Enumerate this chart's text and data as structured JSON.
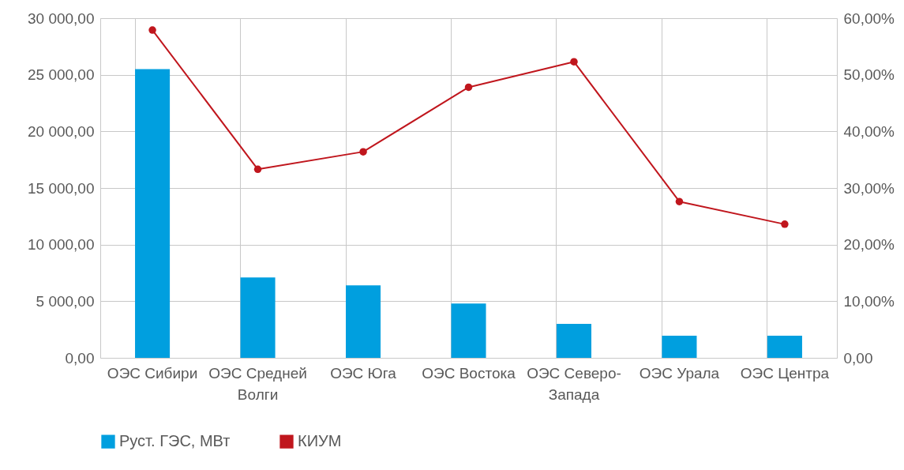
{
  "chart_data": {
    "type": "bar",
    "categories": [
      "ОЭС Сибири",
      "ОЭС Средней Волги",
      "ОЭС Юга",
      "ОЭС Востока",
      "ОЭС Северо-Запада",
      "ОЭС Урала",
      "ОЭС Центра"
    ],
    "series": [
      {
        "name": "Руст. ГЭС, МВт",
        "color": "#009fdf",
        "values": [
          25500,
          7100,
          6400,
          4800,
          3000,
          1950,
          1950
        ]
      },
      {
        "name": "КИУМ",
        "type": "line",
        "axis": "y2",
        "color": "#c0161d",
        "marker": "circle",
        "line_style": "solid",
        "values": [
          57.9,
          33.3,
          36.4,
          47.8,
          52.3,
          27.6,
          23.6
        ]
      }
    ],
    "ylim": [
      0,
      30000
    ],
    "yticks": [
      {
        "value": 0,
        "label": "0,00"
      },
      {
        "value": 5000,
        "label": "5 000,00"
      },
      {
        "value": 10000,
        "label": "10 000,00"
      },
      {
        "value": 15000,
        "label": "15 000,00"
      },
      {
        "value": 20000,
        "label": "20 000,00"
      },
      {
        "value": 25000,
        "label": "25 000,00"
      },
      {
        "value": 30000,
        "label": "30 000,00"
      }
    ],
    "y2lim": [
      0,
      60
    ],
    "y2ticks": [
      {
        "value": 0,
        "label": "0,00"
      },
      {
        "value": 10,
        "label": "10,00%"
      },
      {
        "value": 20,
        "label": "20,00%"
      },
      {
        "value": 30,
        "label": "30,00%"
      },
      {
        "value": 40,
        "label": "40,00%"
      },
      {
        "value": 50,
        "label": "50,00%"
      },
      {
        "value": 60,
        "label": "60,00%"
      }
    ],
    "grid": true,
    "legend": "bottom"
  }
}
